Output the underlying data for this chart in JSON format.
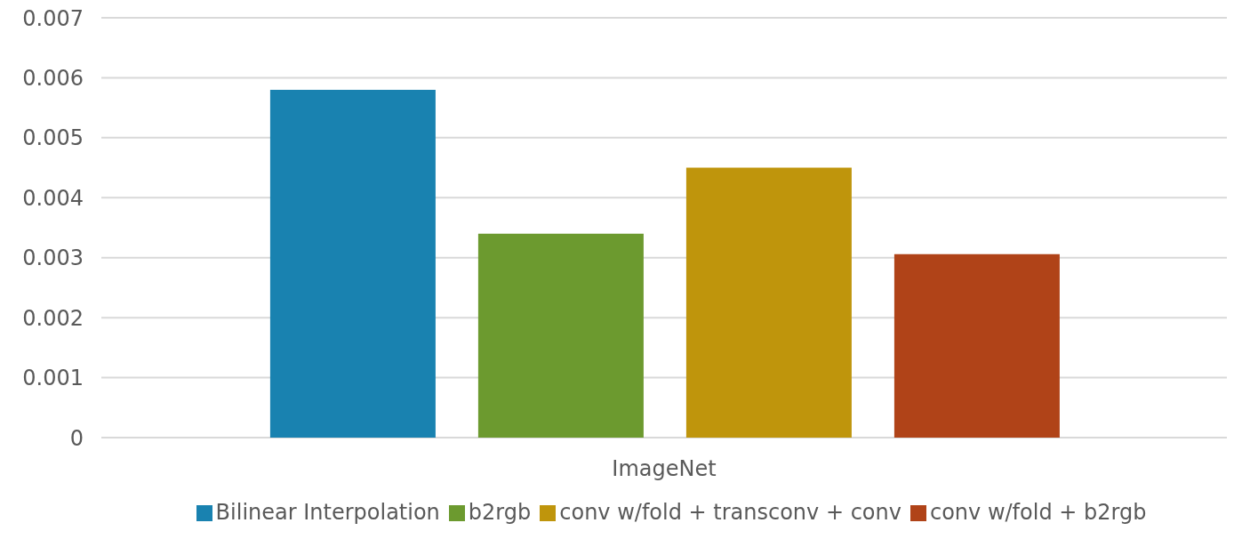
{
  "chart_data": {
    "type": "bar",
    "categories": [
      "ImageNet"
    ],
    "series": [
      {
        "name": "Bilinear Interpolation",
        "color": "#1982b0",
        "values": [
          0.0058
        ]
      },
      {
        "name": "b2rgb",
        "color": "#6c9a2f",
        "values": [
          0.0034
        ]
      },
      {
        "name": "conv w/fold + transconv + conv",
        "color": "#bf950c",
        "values": [
          0.0045
        ]
      },
      {
        "name": "conv w/fold + b2rgb",
        "color": "#b04318",
        "values": [
          0.00306
        ]
      }
    ],
    "ylim": [
      0,
      0.007
    ],
    "yticks": [
      0,
      0.001,
      0.002,
      0.003,
      0.004,
      0.005,
      0.006,
      0.007
    ],
    "grid": "y",
    "legend": "bottom"
  }
}
